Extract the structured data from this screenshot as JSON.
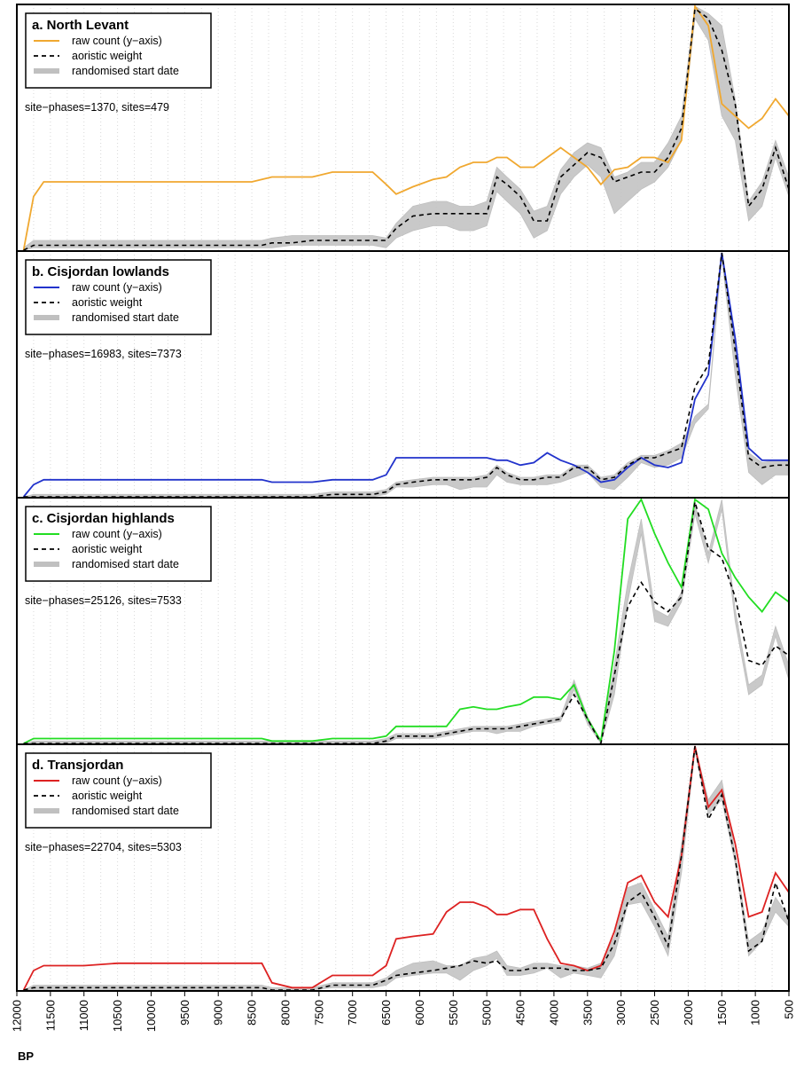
{
  "chart_data": {
    "type": "line",
    "x_axis": {
      "label": "BP",
      "xlim": [
        12000,
        500
      ],
      "reversed": true,
      "tick_labels": [
        "12000",
        "11500",
        "11000",
        "10500",
        "10000",
        "9500",
        "9000",
        "8500",
        "8000",
        "7500",
        "7000",
        "6500",
        "6000",
        "5500",
        "5000",
        "4500",
        "4000",
        "3500",
        "3000",
        "2500",
        "2000",
        "1500",
        "1000",
        "500"
      ],
      "grid": "vertical dotted at 250-year intervals"
    },
    "legend_labels": [
      "raw count (y−axis)",
      "aoristic weight",
      "randomised start date"
    ],
    "legend_styles": [
      "solid line in panel colour",
      "black dashed line",
      "thick grey band"
    ],
    "legend_position": "top-left",
    "x": [
      11900,
      11750,
      11600,
      11000,
      10500,
      9000,
      8500,
      8350,
      8200,
      7900,
      7600,
      7300,
      6700,
      6500,
      6350,
      6100,
      5800,
      5600,
      5400,
      5200,
      5000,
      4850,
      4700,
      4500,
      4300,
      4100,
      3900,
      3700,
      3500,
      3300,
      3100,
      2900,
      2700,
      2500,
      2300,
      2100,
      1900,
      1700,
      1500,
      1300,
      1100,
      900,
      700,
      500
    ],
    "panels": [
      {
        "title": "a. North Levant",
        "color": "#f0a830",
        "stats": "site−phases=1370, sites=479",
        "raw_count": [
          0.0,
          0.22,
          0.28,
          0.28,
          0.28,
          0.28,
          0.28,
          0.29,
          0.3,
          0.3,
          0.3,
          0.32,
          0.32,
          0.27,
          0.23,
          0.26,
          0.29,
          0.3,
          0.34,
          0.36,
          0.36,
          0.38,
          0.38,
          0.34,
          0.34,
          0.38,
          0.42,
          0.38,
          0.34,
          0.27,
          0.33,
          0.34,
          0.38,
          0.38,
          0.36,
          0.45,
          1.0,
          0.92,
          0.6,
          0.55,
          0.5,
          0.54,
          0.62,
          0.55
        ],
        "aoristic": [
          0.0,
          0.02,
          0.02,
          0.02,
          0.02,
          0.02,
          0.02,
          0.02,
          0.03,
          0.03,
          0.04,
          0.04,
          0.04,
          0.04,
          0.09,
          0.14,
          0.15,
          0.15,
          0.15,
          0.15,
          0.15,
          0.3,
          0.27,
          0.22,
          0.12,
          0.12,
          0.3,
          0.35,
          0.4,
          0.38,
          0.28,
          0.3,
          0.32,
          0.32,
          0.38,
          0.5,
          0.99,
          0.95,
          0.82,
          0.6,
          0.18,
          0.25,
          0.42,
          0.25
        ],
        "randomised_lo": [
          0.0,
          0.01,
          0.01,
          0.01,
          0.01,
          0.01,
          0.01,
          0.01,
          0.01,
          0.02,
          0.02,
          0.02,
          0.02,
          0.01,
          0.05,
          0.08,
          0.1,
          0.1,
          0.08,
          0.08,
          0.1,
          0.24,
          0.2,
          0.15,
          0.05,
          0.08,
          0.23,
          0.3,
          0.35,
          0.3,
          0.15,
          0.2,
          0.25,
          0.28,
          0.34,
          0.45,
          0.95,
          0.86,
          0.55,
          0.45,
          0.12,
          0.18,
          0.38,
          0.22
        ],
        "randomised_hi": [
          0.01,
          0.04,
          0.04,
          0.04,
          0.04,
          0.04,
          0.04,
          0.04,
          0.05,
          0.06,
          0.06,
          0.06,
          0.06,
          0.05,
          0.11,
          0.18,
          0.2,
          0.2,
          0.18,
          0.18,
          0.2,
          0.34,
          0.3,
          0.25,
          0.16,
          0.18,
          0.33,
          0.4,
          0.44,
          0.42,
          0.3,
          0.32,
          0.36,
          0.36,
          0.44,
          0.55,
          1.0,
          0.97,
          0.92,
          0.62,
          0.2,
          0.28,
          0.45,
          0.3
        ]
      },
      {
        "title": "b. Cisjordan lowlands",
        "color": "#2233cc",
        "stats": "site−phases=16983, sites=7373",
        "raw_count": [
          0.0,
          0.05,
          0.07,
          0.07,
          0.07,
          0.07,
          0.07,
          0.07,
          0.06,
          0.06,
          0.06,
          0.07,
          0.07,
          0.09,
          0.16,
          0.16,
          0.16,
          0.16,
          0.16,
          0.16,
          0.16,
          0.15,
          0.15,
          0.13,
          0.14,
          0.18,
          0.15,
          0.13,
          0.1,
          0.06,
          0.07,
          0.12,
          0.16,
          0.13,
          0.12,
          0.14,
          0.4,
          0.5,
          1.0,
          0.65,
          0.2,
          0.15,
          0.15,
          0.15
        ],
        "aoristic": [
          0.0,
          0.0,
          0.0,
          0.0,
          0.0,
          0.0,
          0.0,
          0.0,
          0.0,
          0.0,
          0.0,
          0.01,
          0.01,
          0.02,
          0.05,
          0.06,
          0.07,
          0.07,
          0.07,
          0.07,
          0.08,
          0.12,
          0.09,
          0.07,
          0.07,
          0.08,
          0.08,
          0.12,
          0.12,
          0.07,
          0.08,
          0.13,
          0.16,
          0.16,
          0.18,
          0.2,
          0.45,
          0.54,
          1.0,
          0.6,
          0.16,
          0.12,
          0.13,
          0.13
        ],
        "randomised_lo": [
          0.0,
          0.0,
          0.0,
          0.0,
          0.0,
          0.0,
          0.0,
          0.0,
          0.0,
          0.0,
          0.0,
          0.0,
          0.0,
          0.01,
          0.04,
          0.04,
          0.05,
          0.05,
          0.03,
          0.04,
          0.04,
          0.09,
          0.06,
          0.05,
          0.05,
          0.05,
          0.06,
          0.08,
          0.1,
          0.04,
          0.03,
          0.08,
          0.14,
          0.12,
          0.13,
          0.16,
          0.3,
          0.36,
          0.98,
          0.5,
          0.1,
          0.05,
          0.09,
          0.09
        ],
        "randomised_hi": [
          0.0,
          0.01,
          0.01,
          0.01,
          0.01,
          0.01,
          0.01,
          0.01,
          0.01,
          0.01,
          0.01,
          0.02,
          0.02,
          0.03,
          0.06,
          0.07,
          0.08,
          0.08,
          0.08,
          0.08,
          0.09,
          0.13,
          0.1,
          0.08,
          0.08,
          0.09,
          0.09,
          0.13,
          0.13,
          0.08,
          0.09,
          0.14,
          0.17,
          0.17,
          0.19,
          0.22,
          0.33,
          0.38,
          1.0,
          0.65,
          0.18,
          0.14,
          0.15,
          0.15
        ]
      },
      {
        "title": "c. Cisjordan highlands",
        "color": "#22dd22",
        "stats": "site−phases=25126, sites=7533",
        "raw_count": [
          0.0,
          0.02,
          0.02,
          0.02,
          0.02,
          0.02,
          0.02,
          0.02,
          0.01,
          0.01,
          0.01,
          0.02,
          0.02,
          0.03,
          0.07,
          0.07,
          0.07,
          0.07,
          0.14,
          0.15,
          0.14,
          0.14,
          0.15,
          0.16,
          0.19,
          0.19,
          0.18,
          0.24,
          0.1,
          0.01,
          0.38,
          0.92,
          1.0,
          0.86,
          0.74,
          0.64,
          1.0,
          0.96,
          0.78,
          0.68,
          0.6,
          0.54,
          0.62,
          0.58
        ],
        "aoristic": [
          0.0,
          0.0,
          0.0,
          0.0,
          0.0,
          0.0,
          0.0,
          0.0,
          0.0,
          0.0,
          0.0,
          0.0,
          0.0,
          0.01,
          0.03,
          0.03,
          0.03,
          0.04,
          0.05,
          0.06,
          0.06,
          0.06,
          0.06,
          0.07,
          0.08,
          0.09,
          0.1,
          0.2,
          0.1,
          0.0,
          0.28,
          0.56,
          0.66,
          0.58,
          0.54,
          0.6,
          0.99,
          0.8,
          0.76,
          0.6,
          0.34,
          0.32,
          0.4,
          0.36
        ],
        "randomised_lo": [
          0.0,
          0.0,
          0.0,
          0.0,
          0.0,
          0.0,
          0.0,
          0.0,
          0.0,
          0.0,
          0.0,
          0.0,
          0.0,
          0.0,
          0.02,
          0.02,
          0.02,
          0.03,
          0.04,
          0.05,
          0.05,
          0.04,
          0.05,
          0.05,
          0.07,
          0.08,
          0.09,
          0.22,
          0.08,
          0.0,
          0.2,
          0.58,
          0.86,
          0.5,
          0.48,
          0.58,
          0.94,
          0.74,
          0.96,
          0.5,
          0.2,
          0.24,
          0.44,
          0.26
        ],
        "randomised_hi": [
          0.0,
          0.01,
          0.01,
          0.01,
          0.01,
          0.01,
          0.01,
          0.01,
          0.01,
          0.01,
          0.01,
          0.01,
          0.01,
          0.02,
          0.04,
          0.04,
          0.04,
          0.05,
          0.06,
          0.07,
          0.07,
          0.07,
          0.07,
          0.08,
          0.09,
          0.1,
          0.11,
          0.26,
          0.11,
          0.01,
          0.32,
          0.66,
          0.92,
          0.55,
          0.52,
          0.62,
          0.98,
          0.78,
          1.0,
          0.55,
          0.24,
          0.28,
          0.48,
          0.32
        ]
      },
      {
        "title": "d. Transjordan",
        "color": "#dd2222",
        "stats": "site−phases=22704, sites=5303",
        "raw_count": [
          0.0,
          0.08,
          0.1,
          0.1,
          0.11,
          0.11,
          0.11,
          0.11,
          0.03,
          0.01,
          0.01,
          0.06,
          0.06,
          0.1,
          0.21,
          0.22,
          0.23,
          0.32,
          0.36,
          0.36,
          0.34,
          0.31,
          0.31,
          0.33,
          0.33,
          0.21,
          0.11,
          0.1,
          0.08,
          0.1,
          0.24,
          0.44,
          0.47,
          0.36,
          0.3,
          0.55,
          1.0,
          0.75,
          0.82,
          0.6,
          0.3,
          0.32,
          0.48,
          0.4
        ],
        "aoristic": [
          0.0,
          0.01,
          0.01,
          0.01,
          0.01,
          0.01,
          0.01,
          0.01,
          0.0,
          0.0,
          0.0,
          0.02,
          0.02,
          0.04,
          0.06,
          0.07,
          0.08,
          0.09,
          0.1,
          0.12,
          0.11,
          0.12,
          0.08,
          0.08,
          0.09,
          0.09,
          0.09,
          0.08,
          0.08,
          0.09,
          0.19,
          0.36,
          0.4,
          0.3,
          0.18,
          0.55,
          1.0,
          0.7,
          0.8,
          0.54,
          0.16,
          0.2,
          0.44,
          0.28
        ],
        "randomised_lo": [
          0.0,
          0.0,
          0.0,
          0.0,
          0.0,
          0.0,
          0.0,
          0.0,
          0.0,
          0.0,
          0.0,
          0.01,
          0.01,
          0.02,
          0.05,
          0.06,
          0.07,
          0.07,
          0.04,
          0.08,
          0.1,
          0.13,
          0.06,
          0.06,
          0.07,
          0.09,
          0.05,
          0.07,
          0.06,
          0.05,
          0.14,
          0.35,
          0.36,
          0.26,
          0.14,
          0.48,
          0.98,
          0.72,
          0.78,
          0.52,
          0.14,
          0.2,
          0.32,
          0.26
        ],
        "randomised_hi": [
          0.0,
          0.02,
          0.02,
          0.02,
          0.02,
          0.02,
          0.02,
          0.02,
          0.01,
          0.01,
          0.01,
          0.03,
          0.03,
          0.05,
          0.08,
          0.11,
          0.12,
          0.1,
          0.1,
          0.13,
          0.14,
          0.16,
          0.1,
          0.09,
          0.11,
          0.11,
          0.1,
          0.1,
          0.09,
          0.11,
          0.22,
          0.42,
          0.44,
          0.33,
          0.22,
          0.6,
          1.0,
          0.78,
          0.86,
          0.56,
          0.2,
          0.24,
          0.38,
          0.3
        ]
      }
    ]
  }
}
